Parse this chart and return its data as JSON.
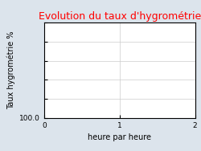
{
  "title": "Evolution du taux d'hygrométrie",
  "title_color": "#ff0000",
  "xlabel": "heure par heure",
  "ylabel": "Taux hygrométrie %",
  "background_color": "#dce4ec",
  "plot_bg_color": "#ffffff",
  "xlim": [
    0,
    2
  ],
  "ylim_bottom_label": "100.0",
  "xticks": [
    0,
    1,
    2
  ],
  "ytick_positions": [
    0,
    0.2,
    0.4,
    0.6,
    0.8,
    1.0
  ],
  "grid": true,
  "title_fontsize": 9,
  "axis_label_fontsize": 7,
  "tick_fontsize": 6.5
}
